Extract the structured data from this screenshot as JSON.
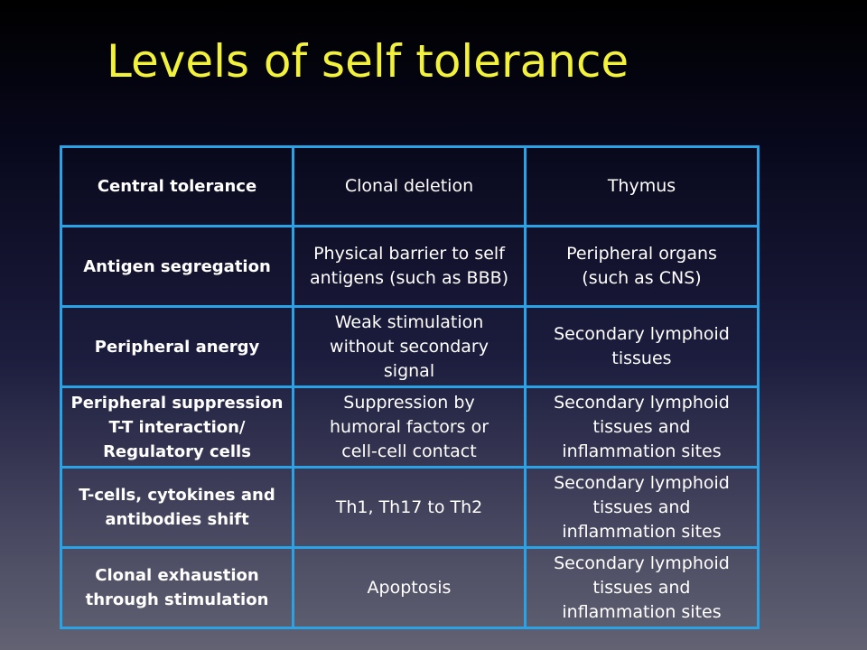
{
  "slide": {
    "title": "Levels of self tolerance"
  },
  "table": {
    "rows": [
      {
        "level": [
          "Central tolerance"
        ],
        "mechanism": [
          "Clonal deletion"
        ],
        "site": [
          "Thymus"
        ]
      },
      {
        "level": [
          "Antigen segregation"
        ],
        "mechanism": [
          "Physical barrier to self",
          "antigens (such as BBB)"
        ],
        "site": [
          "Peripheral organs",
          "(such as CNS)"
        ]
      },
      {
        "level": [
          "Peripheral anergy"
        ],
        "mechanism": [
          "Weak stimulation",
          "without secondary",
          "signal"
        ],
        "site": [
          "Secondary lymphoid",
          "tissues"
        ]
      },
      {
        "level": [
          "Peripheral suppression",
          "T-T interaction/",
          "Regulatory cells"
        ],
        "mechanism": [
          "Suppression by",
          "humoral factors or",
          "cell-cell contact"
        ],
        "site": [
          "Secondary lymphoid",
          "tissues and",
          "inflammation sites"
        ]
      },
      {
        "level": [
          "T-cells, cytokines and",
          "antibodies shift"
        ],
        "mechanism": [
          "Th1, Th17 to Th2"
        ],
        "site": [
          "Secondary lymphoid",
          "tissues and",
          "inflammation sites"
        ]
      },
      {
        "level": [
          "Clonal exhaustion",
          "through stimulation"
        ],
        "mechanism": [
          "Apoptosis"
        ],
        "site": [
          "Secondary lymphoid",
          "tissues and",
          "inflammation sites"
        ]
      }
    ]
  },
  "colors": {
    "title": "#f2f23a",
    "table_border": "#29a3e6",
    "text": "#ffffff"
  }
}
